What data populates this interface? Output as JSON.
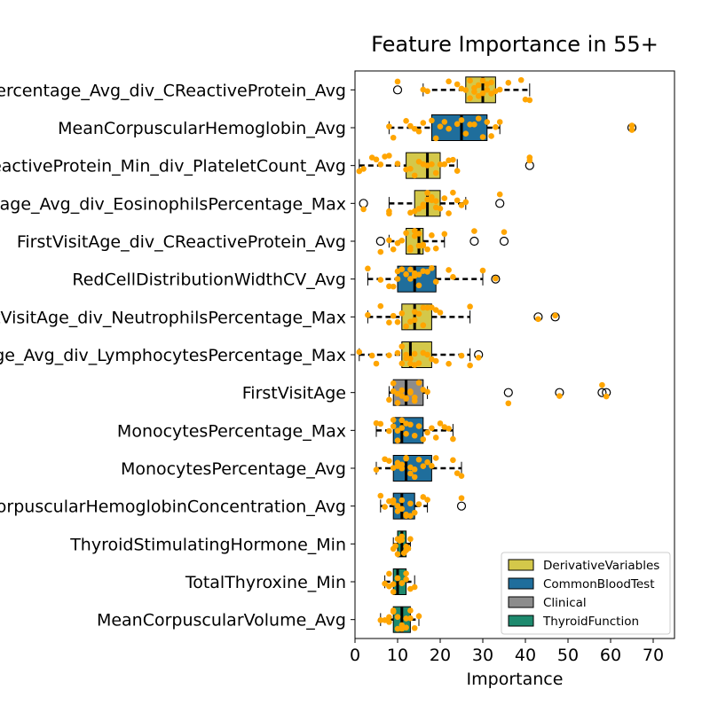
{
  "chart_data": {
    "type": "box",
    "orientation": "horizontal",
    "title": "Feature Importance in 55+",
    "xlabel": "Importance",
    "ylabel": "",
    "xlim": [
      0,
      75
    ],
    "xticks": [
      0,
      10,
      20,
      30,
      40,
      50,
      60,
      70
    ],
    "grid": false,
    "legend_position": "bottom-right",
    "categories": [
      "RedCellDistributionWidthSD_MeanCorpuscularVolume_Percentage_Avg_div_CReactiveProtein_Avg",
      "MeanCorpuscularHemoglobin_Avg",
      "CReactiveProtein_Min_div_PlateletCount_Avg",
      "NeutrophilsPercentage_Avg_div_EosinophilsPercentage_Max",
      "FirstVisitAge_div_CReactiveProtein_Avg",
      "RedCellDistributionWidthCV_Avg",
      "FirstVisitAge_div_NeutrophilsPercentage_Max",
      "MonocytesPercentage_Avg_div_LymphocytesPercentage_Max",
      "FirstVisitAge",
      "MonocytesPercentage_Max",
      "MonocytesPercentage_Avg",
      "MeanCorpuscularHemoglobinConcentration_Avg",
      "ThyroidStimulatingHormone_Min",
      "TotalThyroxine_Min",
      "MeanCorpuscularVolume_Avg"
    ],
    "legend": [
      {
        "name": "DerivativeVariables",
        "color": "#d4c84a"
      },
      {
        "name": "CommonBloodTest",
        "color": "#1f6e9c"
      },
      {
        "name": "Clinical",
        "color": "#8c8c8c"
      },
      {
        "name": "ThyroidFunction",
        "color": "#1e8a6e"
      }
    ],
    "point_color": "#ffa500",
    "boxes": [
      {
        "group": "DerivativeVariables",
        "q1": 26,
        "median": 30,
        "q3": 33,
        "whisker_low": 16,
        "whisker_high": 41,
        "outliers": [
          10
        ],
        "points": [
          16,
          17,
          22,
          24,
          25,
          26,
          27,
          27,
          28,
          28,
          29,
          29,
          30,
          30,
          31,
          31,
          32,
          32,
          33,
          34,
          36,
          39,
          40,
          41,
          10
        ]
      },
      {
        "group": "CommonBloodTest",
        "q1": 18,
        "median": 25,
        "q3": 31,
        "whisker_low": 8,
        "whisker_high": 34,
        "outliers": [
          65
        ],
        "points": [
          8,
          9,
          12,
          13,
          14,
          15,
          16,
          18,
          19,
          20,
          21,
          22,
          24,
          25,
          26,
          27,
          28,
          29,
          30,
          31,
          32,
          33,
          34,
          65,
          65
        ]
      },
      {
        "group": "DerivativeVariables",
        "q1": 12,
        "median": 17,
        "q3": 20,
        "whisker_low": 1,
        "whisker_high": 24,
        "outliers": [
          41
        ],
        "points": [
          1,
          2,
          4,
          5,
          6,
          7,
          8,
          10,
          12,
          13,
          14,
          15,
          16,
          17,
          18,
          19,
          20,
          21,
          22,
          23,
          24,
          41,
          41
        ]
      },
      {
        "group": "DerivativeVariables",
        "q1": 14,
        "median": 17,
        "q3": 20,
        "whisker_low": 8,
        "whisker_high": 26,
        "outliers": [
          2,
          34
        ],
        "points": [
          2,
          8,
          8,
          13,
          14,
          15,
          16,
          16,
          17,
          17,
          18,
          18,
          19,
          19,
          20,
          21,
          22,
          23,
          24,
          25,
          26,
          34
        ]
      },
      {
        "group": "DerivativeVariables",
        "q1": 12,
        "median": 15,
        "q3": 16,
        "whisker_low": 8,
        "whisker_high": 21,
        "outliers": [
          6,
          28,
          35
        ],
        "points": [
          6,
          8,
          9,
          10,
          11,
          12,
          13,
          13,
          14,
          14,
          15,
          15,
          16,
          16,
          17,
          18,
          19,
          21,
          28,
          35
        ]
      },
      {
        "group": "CommonBloodTest",
        "q1": 10,
        "median": 14,
        "q3": 19,
        "whisker_low": 3,
        "whisker_high": 30,
        "outliers": [
          33
        ],
        "points": [
          3,
          6,
          8,
          9,
          10,
          10,
          11,
          12,
          13,
          13,
          14,
          14,
          15,
          15,
          16,
          17,
          18,
          19,
          22,
          23,
          30,
          33
        ]
      },
      {
        "group": "DerivativeVariables",
        "q1": 11,
        "median": 14,
        "q3": 18,
        "whisker_low": 3,
        "whisker_high": 27,
        "outliers": [
          43,
          47
        ],
        "points": [
          3,
          6,
          8,
          9,
          10,
          11,
          12,
          13,
          14,
          14,
          15,
          16,
          16,
          17,
          18,
          19,
          20,
          27,
          43,
          47
        ]
      },
      {
        "group": "DerivativeVariables",
        "q1": 11,
        "median": 13,
        "q3": 18,
        "whisker_low": 1,
        "whisker_high": 27,
        "outliers": [
          29
        ],
        "points": [
          1,
          4,
          5,
          8,
          10,
          11,
          11,
          12,
          12,
          13,
          13,
          14,
          14,
          15,
          16,
          17,
          18,
          19,
          22,
          25,
          27,
          29
        ]
      },
      {
        "group": "Clinical",
        "q1": 9,
        "median": 12,
        "q3": 16,
        "whisker_low": 8,
        "whisker_high": 17,
        "outliers": [
          36,
          48,
          58,
          59
        ],
        "points": [
          8,
          9,
          9,
          10,
          10,
          11,
          11,
          12,
          12,
          13,
          13,
          14,
          14,
          15,
          16,
          17,
          36,
          48,
          58,
          59
        ]
      },
      {
        "group": "CommonBloodTest",
        "q1": 9,
        "median": 11,
        "q3": 16,
        "whisker_low": 5,
        "whisker_high": 23,
        "outliers": [],
        "points": [
          5,
          6,
          8,
          9,
          9,
          10,
          10,
          11,
          11,
          12,
          12,
          13,
          14,
          15,
          16,
          17,
          18,
          19,
          20,
          21,
          22,
          23
        ]
      },
      {
        "group": "CommonBloodTest",
        "q1": 9,
        "median": 12,
        "q3": 18,
        "whisker_low": 5,
        "whisker_high": 25,
        "outliers": [],
        "points": [
          5,
          7,
          8,
          9,
          10,
          10,
          11,
          11,
          12,
          12,
          13,
          13,
          14,
          14,
          15,
          16,
          17,
          18,
          19,
          23,
          24,
          25
        ]
      },
      {
        "group": "CommonBloodTest",
        "q1": 9,
        "median": 11,
        "q3": 14,
        "whisker_low": 6,
        "whisker_high": 17,
        "outliers": [
          25
        ],
        "points": [
          6,
          7,
          8,
          9,
          9,
          10,
          10,
          11,
          11,
          12,
          12,
          13,
          13,
          14,
          15,
          16,
          17,
          25
        ]
      },
      {
        "group": "ThyroidFunction",
        "q1": 10,
        "median": 11,
        "q3": 12,
        "whisker_low": 9,
        "whisker_high": 13,
        "outliers": [],
        "points": [
          9,
          9.5,
          10,
          10,
          10.5,
          11,
          11,
          11.5,
          12,
          12,
          12.5,
          13
        ]
      },
      {
        "group": "ThyroidFunction",
        "q1": 9,
        "median": 10,
        "q3": 12,
        "whisker_low": 7,
        "whisker_high": 14,
        "outliers": [],
        "points": [
          7,
          8,
          8,
          9,
          9,
          10,
          10,
          11,
          11,
          12,
          12,
          13,
          14
        ]
      },
      {
        "group": "ThyroidFunction",
        "q1": 9,
        "median": 11,
        "q3": 13,
        "whisker_low": 6,
        "whisker_high": 15,
        "outliers": [],
        "points": [
          6,
          7,
          8,
          8,
          9,
          9,
          10,
          10,
          11,
          11,
          12,
          12,
          13,
          13,
          14,
          15
        ]
      }
    ]
  }
}
